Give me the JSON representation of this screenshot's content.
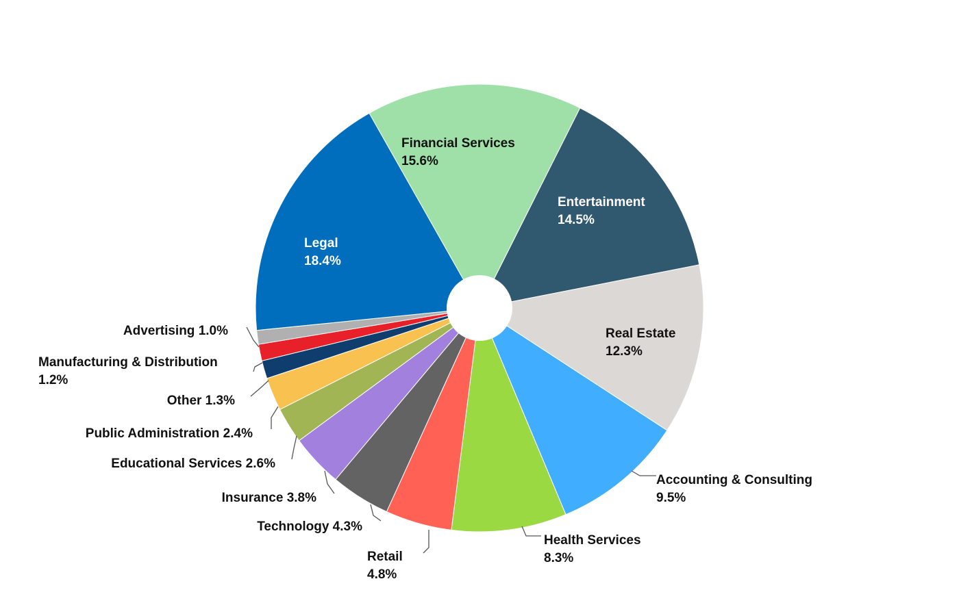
{
  "chart_data": {
    "type": "pie",
    "donut": true,
    "legend": "none",
    "slices": [
      {
        "label": "Financial Services",
        "value": 15.6,
        "color": "#9fe0a8",
        "text_color": "#111111",
        "placement": "inside"
      },
      {
        "label": "Entertainment",
        "value": 14.5,
        "color": "#30586f",
        "text_color": "#ffffff",
        "placement": "inside"
      },
      {
        "label": "Real Estate",
        "value": 12.3,
        "color": "#dcd8d6",
        "text_color": "#111111",
        "placement": "inside"
      },
      {
        "label": "Accounting & Consulting",
        "value": 9.5,
        "color": "#40adff",
        "text_color": "#111111",
        "placement": "outside"
      },
      {
        "label": "Health Services",
        "value": 8.3,
        "color": "#9bd943",
        "text_color": "#111111",
        "placement": "outside"
      },
      {
        "label": "Retail",
        "value": 4.8,
        "color": "#ff6155",
        "text_color": "#111111",
        "placement": "outside"
      },
      {
        "label": "Technology",
        "value": 4.3,
        "color": "#636363",
        "text_color": "#111111",
        "placement": "outside"
      },
      {
        "label": "Insurance",
        "value": 3.8,
        "color": "#a181dd",
        "text_color": "#111111",
        "placement": "outside"
      },
      {
        "label": "Educational Services",
        "value": 2.6,
        "color": "#a1b554",
        "text_color": "#111111",
        "placement": "outside"
      },
      {
        "label": "Public Administration",
        "value": 2.4,
        "color": "#f9c150",
        "text_color": "#111111",
        "placement": "outside"
      },
      {
        "label": "Other",
        "value": 1.3,
        "color": "#0f3d6e",
        "text_color": "#111111",
        "placement": "outside"
      },
      {
        "label": "Manufacturing & Distribution",
        "value": 1.2,
        "color": "#e8202a",
        "text_color": "#111111",
        "placement": "outside"
      },
      {
        "label": "Advertising",
        "value": 1.0,
        "color": "#b0b0b0",
        "text_color": "#111111",
        "placement": "outside"
      },
      {
        "label": "Legal",
        "value": 18.4,
        "color": "#006ebd",
        "text_color": "#ffffff",
        "placement": "inside"
      }
    ],
    "data_labels": [
      "15.6%",
      "14.5%",
      "12.3%",
      "9.5%",
      "8.3%",
      "4.8%",
      "4.3%",
      "3.8%",
      "2.6%",
      "2.4%",
      "1.3%",
      "1.2%",
      "1.0%",
      "18.4%"
    ]
  }
}
